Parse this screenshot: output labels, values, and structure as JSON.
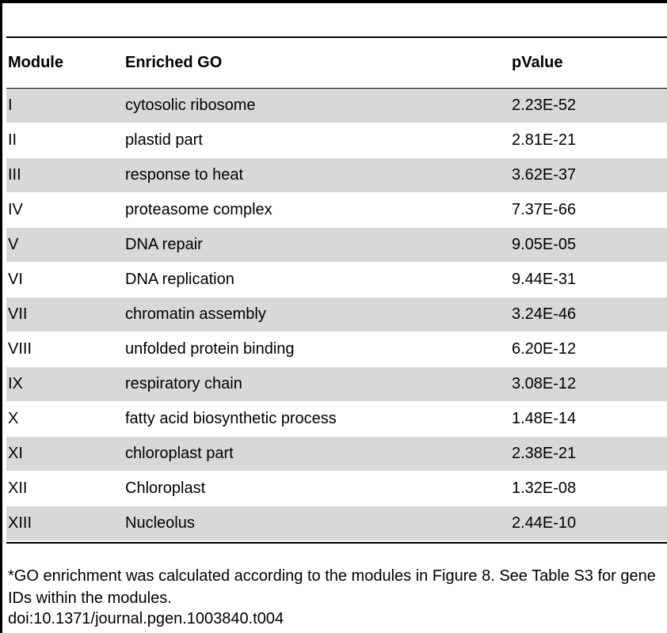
{
  "table": {
    "headers": {
      "module": "Module",
      "enriched_go": "Enriched GO",
      "pvalue": "pValue"
    },
    "rows": [
      {
        "module": "I",
        "go": "cytosolic ribosome",
        "pvalue": "2.23E-52"
      },
      {
        "module": "II",
        "go": "plastid part",
        "pvalue": "2.81E-21"
      },
      {
        "module": "III",
        "go": "response to heat",
        "pvalue": "3.62E-37"
      },
      {
        "module": "IV",
        "go": "proteasome complex",
        "pvalue": "7.37E-66"
      },
      {
        "module": "V",
        "go": "DNA repair",
        "pvalue": "9.05E-05"
      },
      {
        "module": "VI",
        "go": "DNA replication",
        "pvalue": "9.44E-31"
      },
      {
        "module": "VII",
        "go": "chromatin assembly",
        "pvalue": "3.24E-46"
      },
      {
        "module": "VIII",
        "go": "unfolded protein binding",
        "pvalue": "6.20E-12"
      },
      {
        "module": "IX",
        "go": "respiratory chain",
        "pvalue": "3.08E-12"
      },
      {
        "module": "X",
        "go": "fatty acid biosynthetic process",
        "pvalue": "1.48E-14"
      },
      {
        "module": "XI",
        "go": "chloroplast part",
        "pvalue": "2.38E-21"
      },
      {
        "module": "XII",
        "go": "Chloroplast",
        "pvalue": "1.32E-08"
      },
      {
        "module": "XIII",
        "go": "Nucleolus",
        "pvalue": "2.44E-10"
      }
    ]
  },
  "footnote": "*GO enrichment was calculated according to the modules in Figure 8. See Table S3 for gene IDs within the modules.",
  "doi": "doi:10.1371/journal.pgen.1003840.t004",
  "colors": {
    "shaded_row": "#d8d8d8",
    "rule": "#000000"
  }
}
